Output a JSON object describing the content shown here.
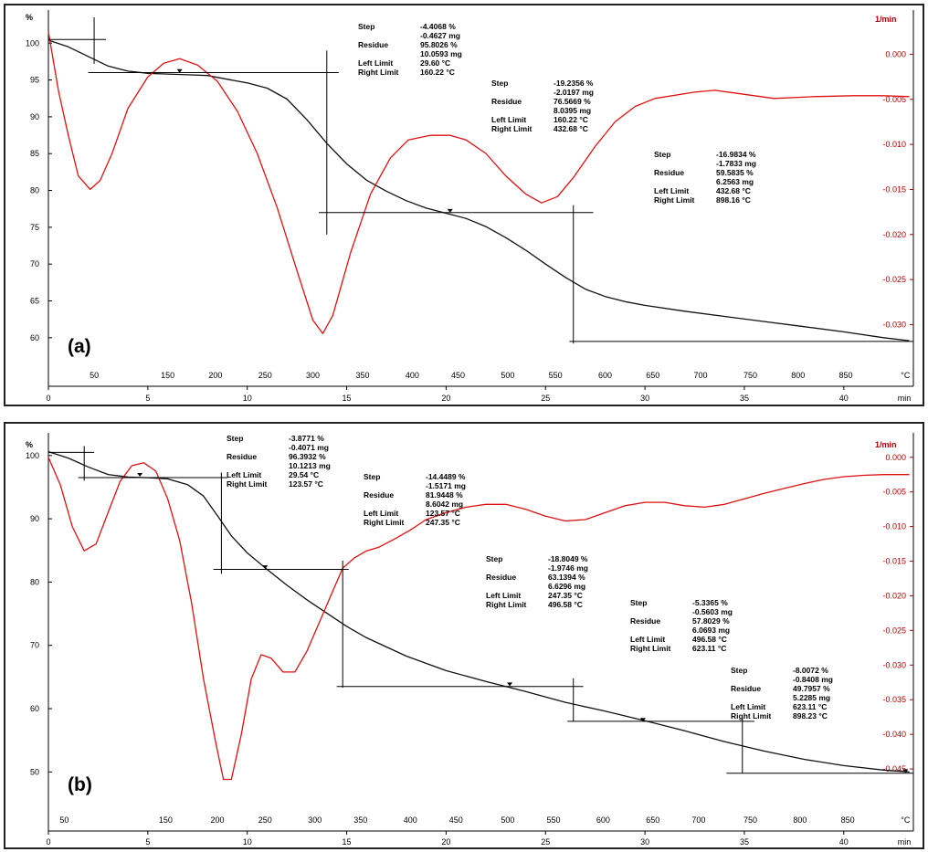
{
  "chart_data": [
    {
      "id": "a",
      "type": "line",
      "panel_label": "(a)",
      "y_unit": "%",
      "y2_unit": "1/min",
      "x_unit": "min",
      "temp_unit": "°C",
      "ylim": [
        57.5,
        104
      ],
      "y2lim": [
        -0.0335,
        0.0045
      ],
      "xlim": [
        0,
        43.5
      ],
      "y_ticks": [
        100,
        95,
        90,
        85,
        80,
        75,
        70,
        65,
        60
      ],
      "y2_ticks": [
        {
          "v": 0.0,
          "label": "0.000"
        },
        {
          "v": -0.005,
          "label": "-0.005"
        },
        {
          "v": -0.01,
          "label": "-0.010"
        },
        {
          "v": -0.015,
          "label": "-0.015"
        },
        {
          "v": -0.02,
          "label": "-0.020"
        },
        {
          "v": -0.025,
          "label": "-0.025"
        },
        {
          "v": -0.03,
          "label": "-0.030"
        }
      ],
      "x_ticks": [
        0,
        5,
        10,
        15,
        20,
        25,
        30,
        35,
        40
      ],
      "temp_ticks": [
        {
          "t": 2.3,
          "label": "50"
        },
        {
          "t": 6.0,
          "label": "150"
        },
        {
          "t": 8.4,
          "label": "200"
        },
        {
          "t": 10.9,
          "label": "250"
        },
        {
          "t": 13.3,
          "label": "300"
        },
        {
          "t": 15.8,
          "label": "350"
        },
        {
          "t": 18.3,
          "label": "400"
        },
        {
          "t": 20.6,
          "label": "450"
        },
        {
          "t": 23.1,
          "label": "500"
        },
        {
          "t": 25.5,
          "label": "550"
        },
        {
          "t": 28.0,
          "label": "600"
        },
        {
          "t": 30.4,
          "label": "650"
        },
        {
          "t": 32.8,
          "label": "700"
        },
        {
          "t": 35.3,
          "label": "750"
        },
        {
          "t": 37.7,
          "label": "800"
        },
        {
          "t": 40.1,
          "label": "850"
        },
        {
          "t": 43.1,
          "label": "°C"
        }
      ],
      "series": [
        {
          "color": "#111111",
          "axis": "left",
          "x": [
            0,
            1,
            2,
            3,
            4,
            5,
            6,
            7,
            8,
            9,
            10,
            11,
            12,
            13,
            14,
            15,
            16,
            17,
            18,
            19,
            20,
            21,
            22,
            23,
            24,
            25,
            26,
            27,
            28,
            29,
            30,
            32,
            34,
            36,
            38,
            40,
            42,
            43.3
          ],
          "y": [
            100.4,
            99.5,
            98.2,
            96.9,
            96.2,
            95.9,
            95.8,
            95.7,
            95.6,
            95.1,
            94.6,
            93.9,
            92.4,
            89.6,
            86.4,
            83.6,
            81.4,
            79.9,
            78.6,
            77.6,
            76.9,
            76.2,
            75.1,
            73.6,
            71.9,
            70.0,
            68.2,
            66.6,
            65.6,
            64.9,
            64.4,
            63.6,
            62.9,
            62.2,
            61.5,
            60.8,
            60.0,
            59.6
          ]
        },
        {
          "color": "#dd1111",
          "axis": "right",
          "x": [
            0,
            0.5,
            1,
            1.5,
            2.1,
            2.6,
            3.2,
            4.0,
            5.0,
            5.8,
            6.6,
            7.5,
            8.5,
            9.5,
            10.5,
            11.5,
            12.5,
            13.3,
            13.8,
            14.3,
            15.2,
            16.2,
            17.2,
            18.1,
            19.2,
            20.2,
            21.0,
            22.0,
            23.0,
            24.0,
            24.8,
            25.6,
            26.4,
            27.5,
            28.5,
            29.5,
            30.5,
            32.5,
            33.5,
            34.5,
            36.5,
            38.5,
            40.5,
            42.0,
            43.3
          ],
          "y": [
            0.0025,
            -0.004,
            -0.009,
            -0.0135,
            -0.015,
            -0.014,
            -0.011,
            -0.006,
            -0.0025,
            -0.001,
            -0.0005,
            -0.0012,
            -0.003,
            -0.0063,
            -0.011,
            -0.017,
            -0.024,
            -0.0295,
            -0.031,
            -0.029,
            -0.022,
            -0.0155,
            -0.0115,
            -0.0095,
            -0.009,
            -0.009,
            -0.0095,
            -0.011,
            -0.0135,
            -0.0155,
            -0.0165,
            -0.0158,
            -0.0137,
            -0.0102,
            -0.0075,
            -0.0058,
            -0.0049,
            -0.0042,
            -0.004,
            -0.0043,
            -0.0049,
            -0.0047,
            -0.0046,
            -0.0046,
            -0.0047
          ]
        }
      ],
      "step_lines": [
        {
          "x1": 0,
          "x2": 2.9,
          "y": 100.5,
          "vx": 2.3,
          "vy1": 97.2,
          "vy2": 103.5
        },
        {
          "x1": 2.0,
          "x2": 14.6,
          "y": 96.0,
          "vx": 14.0,
          "vy1": 74.0,
          "vy2": 99.0
        },
        {
          "x1": 13.6,
          "x2": 27.4,
          "y": 77.0,
          "vx": 26.4,
          "vy1": 59.2,
          "vy2": 78.0
        },
        {
          "x1": 26.2,
          "x2": 43.5,
          "y": 59.5
        }
      ],
      "markers": [
        {
          "x": 6.6,
          "y": 96.1
        },
        {
          "x": 20.2,
          "y": 77.1
        }
      ],
      "annotations": [
        {
          "ax": 392,
          "ay": 32,
          "vx": 460,
          "rows": [
            [
              "Step",
              "-4.4068 %"
            ],
            [
              "",
              "-0.4627 mg"
            ],
            [
              "Residue",
              "95.8026 %"
            ],
            [
              "",
              "10.0593 mg"
            ],
            [
              "Left Limit",
              "29.60 °C"
            ],
            [
              "Right Limit",
              "160.22 °C"
            ]
          ]
        },
        {
          "ax": 538,
          "ay": 94,
          "vx": 606,
          "rows": [
            [
              "Step",
              "-19.2356 %"
            ],
            [
              "",
              "-2.0197 mg"
            ],
            [
              "Residue",
              "76.5669 %"
            ],
            [
              "",
              "8.0395 mg"
            ],
            [
              "Left Limit",
              "160.22 °C"
            ],
            [
              "Right Limit",
              "432.68 °C"
            ]
          ]
        },
        {
          "ax": 716,
          "ay": 172,
          "vx": 784,
          "rows": [
            [
              "Step",
              "-16.9834 %"
            ],
            [
              "",
              "-1.7833 mg"
            ],
            [
              "Residue",
              "59.5835 %"
            ],
            [
              "",
              "6.2563 mg"
            ],
            [
              "Left Limit",
              "432.68 °C"
            ],
            [
              "Right Limit",
              "898.16 °C"
            ]
          ]
        }
      ]
    },
    {
      "id": "b",
      "type": "line",
      "panel_label": "(b)",
      "y_unit": "%",
      "y2_unit": "1/min",
      "x_unit": "min",
      "temp_unit": "°C",
      "ylim": [
        45,
        103
      ],
      "y2lim": [
        -0.05,
        0.003
      ],
      "xlim": [
        0,
        43.5
      ],
      "y_ticks": [
        100,
        90,
        80,
        70,
        60,
        50
      ],
      "y2_ticks": [
        {
          "v": 0.0,
          "label": "0.000"
        },
        {
          "v": -0.005,
          "label": "-0.005"
        },
        {
          "v": -0.01,
          "label": "-0.010"
        },
        {
          "v": -0.015,
          "label": "-0.015"
        },
        {
          "v": -0.02,
          "label": "-0.020"
        },
        {
          "v": -0.025,
          "label": "-0.025"
        },
        {
          "v": -0.03,
          "label": "-0.030"
        },
        {
          "v": -0.035,
          "label": "-0.035"
        },
        {
          "v": -0.04,
          "label": "-0.040"
        },
        {
          "v": -0.045,
          "label": "-0.045"
        }
      ],
      "x_ticks": [
        0,
        5,
        10,
        15,
        20,
        25,
        30,
        35,
        40
      ],
      "temp_ticks": [
        {
          "t": 0.8,
          "label": "50"
        },
        {
          "t": 5.9,
          "label": "150"
        },
        {
          "t": 8.5,
          "label": "200"
        },
        {
          "t": 10.9,
          "label": "250"
        },
        {
          "t": 13.4,
          "label": "300"
        },
        {
          "t": 15.7,
          "label": "350"
        },
        {
          "t": 18.2,
          "label": "400"
        },
        {
          "t": 20.5,
          "label": "450"
        },
        {
          "t": 23.1,
          "label": "500"
        },
        {
          "t": 25.4,
          "label": "550"
        },
        {
          "t": 27.9,
          "label": "600"
        },
        {
          "t": 30.4,
          "label": "650"
        },
        {
          "t": 32.7,
          "label": "700"
        },
        {
          "t": 35.3,
          "label": "750"
        },
        {
          "t": 37.8,
          "label": "800"
        },
        {
          "t": 40.2,
          "label": "850"
        },
        {
          "t": 43.1,
          "label": "°C"
        }
      ],
      "series": [
        {
          "color": "#111111",
          "axis": "left",
          "x": [
            0,
            1,
            2,
            3,
            4,
            5,
            6,
            7,
            7.8,
            8.5,
            9.2,
            10,
            11,
            12,
            13,
            14,
            15,
            16,
            18,
            20,
            22,
            24,
            26,
            28,
            30,
            32,
            34,
            36,
            38,
            40,
            42,
            43.3
          ],
          "y": [
            100.6,
            99.6,
            98.2,
            97.0,
            96.6,
            96.5,
            96.3,
            95.4,
            93.6,
            90.5,
            87.3,
            84.6,
            82.0,
            79.5,
            77.2,
            75.1,
            73.0,
            71.2,
            68.3,
            66.0,
            64.3,
            62.7,
            61.0,
            59.6,
            58.1,
            56.5,
            54.8,
            53.3,
            52.0,
            51.0,
            50.3,
            50.0
          ]
        },
        {
          "color": "#dd1111",
          "axis": "right",
          "x": [
            0,
            0.6,
            1.2,
            1.8,
            2.4,
            3.0,
            3.6,
            4.2,
            4.8,
            5.4,
            6.0,
            6.6,
            7.2,
            7.8,
            8.4,
            8.8,
            9.2,
            9.7,
            10.2,
            10.7,
            11.2,
            11.8,
            12.4,
            13.0,
            13.6,
            14.2,
            14.8,
            15.4,
            16.0,
            16.6,
            17.4,
            18.2,
            19.0,
            20.0,
            21.0,
            22.0,
            23.0,
            24.0,
            25.0,
            26.0,
            27.0,
            28.0,
            29.0,
            30.0,
            31.0,
            32.0,
            33.0,
            34.0,
            35.0,
            36.0,
            37.0,
            38.0,
            39.0,
            40.0,
            41.0,
            42.0,
            43.3
          ],
          "y": [
            0.0,
            -0.004,
            -0.01,
            -0.0135,
            -0.0125,
            -0.008,
            -0.0035,
            -0.0012,
            -0.0008,
            -0.002,
            -0.006,
            -0.012,
            -0.021,
            -0.032,
            -0.041,
            -0.0465,
            -0.0465,
            -0.04,
            -0.032,
            -0.0285,
            -0.029,
            -0.031,
            -0.031,
            -0.028,
            -0.024,
            -0.02,
            -0.016,
            -0.0145,
            -0.0135,
            -0.013,
            -0.0118,
            -0.0105,
            -0.009,
            -0.008,
            -0.0072,
            -0.0068,
            -0.0068,
            -0.0075,
            -0.0085,
            -0.0092,
            -0.009,
            -0.008,
            -0.007,
            -0.0065,
            -0.0065,
            -0.007,
            -0.0072,
            -0.0068,
            -0.006,
            -0.0052,
            -0.0045,
            -0.0038,
            -0.0032,
            -0.0028,
            -0.0026,
            -0.0025,
            -0.0025
          ]
        }
      ],
      "step_lines": [
        {
          "x1": 0,
          "x2": 2.3,
          "y": 100.5,
          "vx": 1.8,
          "vy1": 96.0,
          "vy2": 101.5
        },
        {
          "x1": 1.5,
          "x2": 9.0,
          "y": 96.5,
          "vx": 8.7,
          "vy1": 81.3,
          "vy2": 97.3
        },
        {
          "x1": 8.3,
          "x2": 15.1,
          "y": 82.0,
          "vx": 14.8,
          "vy1": 63.3,
          "vy2": 83.4
        },
        {
          "x1": 14.5,
          "x2": 26.9,
          "y": 63.5,
          "vx": 26.4,
          "vy1": 58.0,
          "vy2": 64.8
        },
        {
          "x1": 26.1,
          "x2": 35.5,
          "y": 58.0,
          "vx": 34.9,
          "vy1": 49.8,
          "vy2": 58.6
        },
        {
          "x1": 34.1,
          "x2": 43.5,
          "y": 49.8
        }
      ],
      "markers": [
        {
          "x": 4.6,
          "y": 96.8
        },
        {
          "x": 10.9,
          "y": 82.2
        },
        {
          "x": 23.2,
          "y": 63.7
        },
        {
          "x": 29.9,
          "y": 58.1
        },
        {
          "x": 43.1,
          "y": 50.0
        }
      ],
      "annotations": [
        {
          "ax": 248,
          "ay": 483,
          "vx": 316,
          "rows": [
            [
              "Step",
              "-3.8771 %"
            ],
            [
              "",
              "-0.4071 mg"
            ],
            [
              "Residue",
              "96.3932 %"
            ],
            [
              "",
              "10.1213 mg"
            ],
            [
              "Left Limit",
              "29.54 °C"
            ],
            [
              "Right Limit",
              "123.57 °C"
            ]
          ]
        },
        {
          "ax": 398,
          "ay": 525,
          "vx": 466,
          "rows": [
            [
              "Step",
              "-14.4489 %"
            ],
            [
              "",
              "-1.5171 mg"
            ],
            [
              "Residue",
              "81.9448 %"
            ],
            [
              "",
              "8.6042 mg"
            ],
            [
              "Left Limit",
              "123.57 °C"
            ],
            [
              "Right Limit",
              "247.35 °C"
            ]
          ]
        },
        {
          "ax": 532,
          "ay": 615,
          "vx": 600,
          "rows": [
            [
              "Step",
              "-18.8049 %"
            ],
            [
              "",
              "-1.9746 mg"
            ],
            [
              "Residue",
              "63.1394 %"
            ],
            [
              "",
              "6.6296 mg"
            ],
            [
              "Left Limit",
              "247.35 °C"
            ],
            [
              "Right Limit",
              "496.58 °C"
            ]
          ]
        },
        {
          "ax": 690,
          "ay": 663,
          "vx": 758,
          "rows": [
            [
              "Step",
              "-5.3365 %"
            ],
            [
              "",
              "-0.5603 mg"
            ],
            [
              "Residue",
              "57.8029 %"
            ],
            [
              "",
              "6.0693 mg"
            ],
            [
              "Left Limit",
              "496.58 °C"
            ],
            [
              "Right Limit",
              "623.11 °C"
            ]
          ]
        },
        {
          "ax": 800,
          "ay": 737,
          "vx": 868,
          "rows": [
            [
              "Step",
              "-8.0072 %"
            ],
            [
              "",
              "-0.8408 mg"
            ],
            [
              "Residue",
              "49.7957 %"
            ],
            [
              "",
              "5.2285 mg"
            ],
            [
              "Left Limit",
              "623.11 °C"
            ],
            [
              "Right Limit",
              "898.23 °C"
            ]
          ]
        }
      ]
    }
  ]
}
